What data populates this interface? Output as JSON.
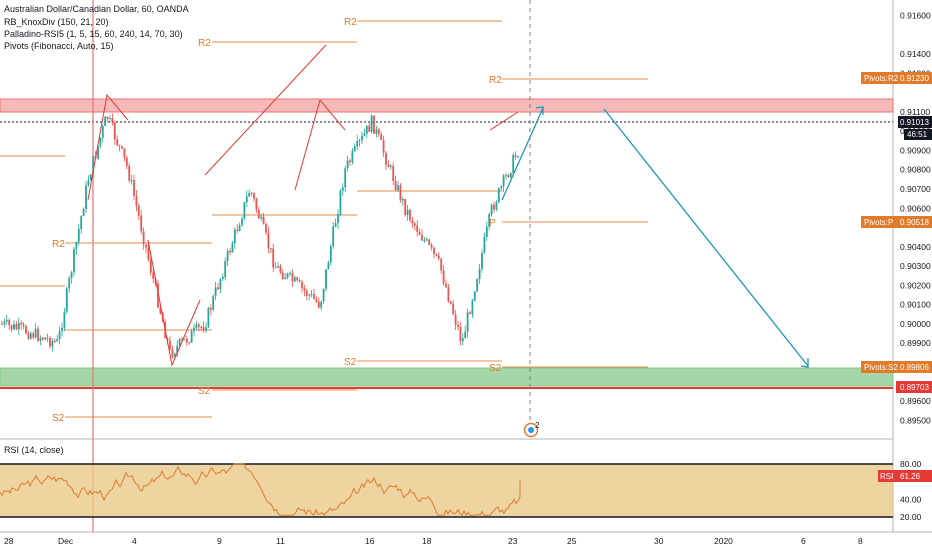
{
  "header": {
    "symbol_title": "Australian Dollar/Canadian Dollar, 60, OANDA",
    "indicator_1": "RB_KnoxDiv (150, 21, 20)",
    "indicator_2": "Palladino-RSI5 (1, 5, 15, 60, 240, 14, 70, 30)",
    "indicator_3": "Pivots (Fibonacci, Auto, 15)"
  },
  "rsi_panel": {
    "title": "RSI (14, close)"
  },
  "price_axis": {
    "ticks": [
      "0.91600",
      "0.91400",
      "0.91300",
      "0.91100",
      "0.91000",
      "0.90900",
      "0.90800",
      "0.90700",
      "0.90600",
      "0.90400",
      "0.90300",
      "0.90200",
      "0.90100",
      "0.90000",
      "0.89900",
      "0.89600",
      "0.89500"
    ]
  },
  "rsi_axis": {
    "ticks": [
      "80.00",
      "40.00",
      "20.00"
    ]
  },
  "time_axis": {
    "labels": [
      "28",
      "Dec",
      "4",
      "9",
      "11",
      "16",
      "18",
      "23",
      "25",
      "30",
      "2020",
      "6",
      "8"
    ]
  },
  "price_tags": {
    "pivot_r2": {
      "label": "Pivots:R2",
      "value": "0.91230",
      "color": "#e07b2c"
    },
    "last_price": {
      "value": "0.91013",
      "color": "#131722"
    },
    "countdown": {
      "value": "46:51",
      "color": "#131722"
    },
    "pivot_p": {
      "label": "Pivots:P",
      "value": "0.90518",
      "color": "#e07b2c"
    },
    "pivot_s2": {
      "label": "Pivots:S2",
      "value": "0.89806",
      "color": "#e07b2c"
    },
    "red_line": {
      "value": "0.89703",
      "color": "#e53935"
    },
    "rsi": {
      "label": "RSI",
      "value": "61.26",
      "color": "#e53935"
    }
  },
  "pivot_labels": {
    "r2_a": "R2",
    "r2_b": "R2",
    "r2_c": "R2",
    "r2_d": "R2",
    "p_a": "P",
    "s2_a": "S2",
    "s2_b": "S2",
    "s2_c": "S2",
    "s2_d": "S2"
  },
  "event_badge": "2",
  "colors": {
    "up": "#26a69a",
    "down": "#ef5350",
    "pivot": "#e07b2c",
    "resistance_zone": "#f6b9b9",
    "support_zone": "#a5d6a7",
    "projection": "#2196b9",
    "rsi_line": "#e07b2c",
    "rsi_band": "#e8c98a"
  },
  "chart_data": {
    "type": "candlestick",
    "title": "Australian Dollar/Canadian Dollar, 60, OANDA",
    "y_range": [
      0.8946,
      0.9166
    ],
    "resistance_zone": [
      0.9106,
      0.9113
    ],
    "support_zone": [
      0.8971,
      0.8981
    ],
    "levels": {
      "pivot_r2": 0.9123,
      "last": 0.91013,
      "pivot_p": 0.90518,
      "pivot_s2": 0.89806,
      "red_line": 0.89703
    },
    "close_path_approx": [
      {
        "x": "Nov 27",
        "y": 0.9
      },
      {
        "x": "Nov 28",
        "y": 0.8996
      },
      {
        "x": "Nov 29",
        "y": 0.899
      },
      {
        "x": "Dec 2",
        "y": 0.9075
      },
      {
        "x": "Dec 3",
        "y": 0.9108
      },
      {
        "x": "Dec 4",
        "y": 0.908
      },
      {
        "x": "Dec 5",
        "y": 0.8985
      },
      {
        "x": "Dec 6",
        "y": 0.9
      },
      {
        "x": "Dec 9",
        "y": 0.907
      },
      {
        "x": "Dec 10",
        "y": 0.903
      },
      {
        "x": "Dec 11",
        "y": 0.901
      },
      {
        "x": "Dec 12",
        "y": 0.908
      },
      {
        "x": "Dec 13",
        "y": 0.9105
      },
      {
        "x": "Dec 16",
        "y": 0.906
      },
      {
        "x": "Dec 17",
        "y": 0.903
      },
      {
        "x": "Dec 18",
        "y": 0.899
      },
      {
        "x": "Dec 19",
        "y": 0.906
      },
      {
        "x": "Dec 20",
        "y": 0.909
      },
      {
        "x": "Dec 23",
        "y": 0.9101
      }
    ],
    "projection": [
      {
        "x": "Dec 23",
        "y": 0.9065
      },
      {
        "x": "Dec 24",
        "y": 0.9106
      },
      {
        "x": "Dec 27",
        "y": 0.9106
      },
      {
        "x": "Jan 6",
        "y": 0.8982
      }
    ],
    "rsi": {
      "value": 61.26,
      "overbought": 70,
      "oversold": 30
    }
  }
}
